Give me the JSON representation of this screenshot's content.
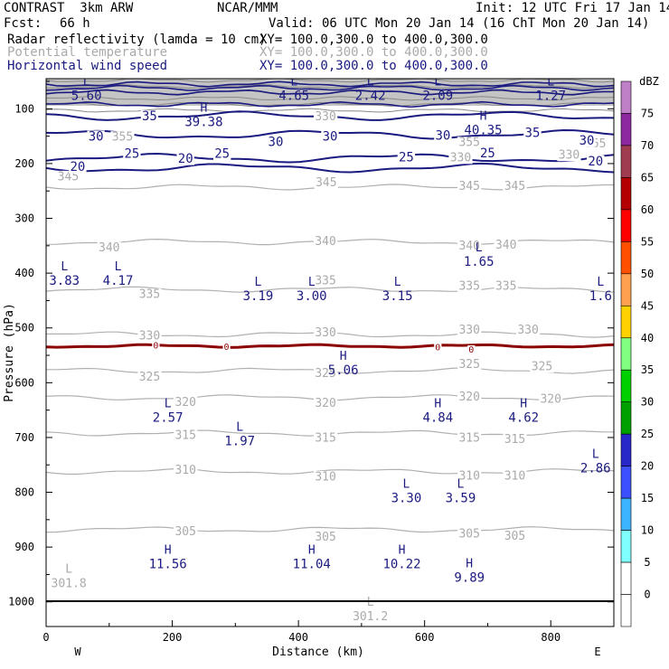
{
  "header": {
    "model": "CONTRAST  3km ARW",
    "center": "NCAR/MMM",
    "init": "Init: 12 UTC Fri 17 Jan 14",
    "fcst_label": "Fcst:",
    "fcst_value": "66 h",
    "valid": "Valid: 06 UTC Mon 20 Jan 14 (16 ChT Mon 20 Jan 14)",
    "fields": [
      {
        "name": "Radar reflectivity (lamda = 10 cm)",
        "xy": "XY= 100.0,300.0 to 400.0,300.0",
        "color": "#000000"
      },
      {
        "name": "Potential temperature",
        "xy": "XY= 100.0,300.0 to 400.0,300.0",
        "color": "#aaaaaa"
      },
      {
        "name": "Horizontal wind speed",
        "xy": "XY= 100.0,300.0 to 400.0,300.0",
        "color": "#1a1a80"
      }
    ]
  },
  "chart_data": {
    "type": "cross-section",
    "xlabel": "Distance (km)",
    "ylabel": "Pressure (hPa)",
    "xlim": [
      0,
      900
    ],
    "ylim": [
      1045,
      45
    ],
    "x_ticks": [
      0,
      200,
      400,
      600,
      800
    ],
    "y_ticks": [
      100,
      200,
      300,
      400,
      500,
      600,
      700,
      800,
      900,
      1000
    ],
    "x_end_labels": {
      "left": "W",
      "right": "E"
    },
    "theta_contours": [
      {
        "label": "345",
        "p": 243
      },
      {
        "label": "340",
        "p": 343
      },
      {
        "label": "335",
        "p": 430
      },
      {
        "label": "330",
        "p": 512
      },
      {
        "label": "325",
        "p": 578
      },
      {
        "label": "320",
        "p": 627
      },
      {
        "label": "315",
        "p": 692
      },
      {
        "label": "310",
        "p": 762
      },
      {
        "label": "305",
        "p": 868
      }
    ],
    "theta_labels": [
      {
        "text": "345",
        "x": 35,
        "p": 222
      },
      {
        "text": "345",
        "x": 444,
        "p": 233
      },
      {
        "text": "345",
        "x": 671,
        "p": 240
      },
      {
        "text": "345",
        "x": 743,
        "p": 240
      },
      {
        "text": "340",
        "x": 100,
        "p": 352
      },
      {
        "text": "340",
        "x": 443,
        "p": 340
      },
      {
        "text": "340",
        "x": 671,
        "p": 349
      },
      {
        "text": "340",
        "x": 729,
        "p": 347
      },
      {
        "text": "335",
        "x": 164,
        "p": 437
      },
      {
        "text": "335",
        "x": 443,
        "p": 412
      },
      {
        "text": "335",
        "x": 671,
        "p": 422
      },
      {
        "text": "335",
        "x": 729,
        "p": 422
      },
      {
        "text": "330",
        "x": 164,
        "p": 513
      },
      {
        "text": "330",
        "x": 443,
        "p": 507
      },
      {
        "text": "330",
        "x": 671,
        "p": 502
      },
      {
        "text": "330",
        "x": 764,
        "p": 502
      },
      {
        "text": "325",
        "x": 164,
        "p": 588
      },
      {
        "text": "325",
        "x": 443,
        "p": 581
      },
      {
        "text": "325",
        "x": 671,
        "p": 565
      },
      {
        "text": "325",
        "x": 786,
        "p": 569
      },
      {
        "text": "320",
        "x": 221,
        "p": 634
      },
      {
        "text": "320",
        "x": 443,
        "p": 636
      },
      {
        "text": "320",
        "x": 671,
        "p": 624
      },
      {
        "text": "320",
        "x": 800,
        "p": 628
      },
      {
        "text": "315",
        "x": 221,
        "p": 694
      },
      {
        "text": "315",
        "x": 443,
        "p": 699
      },
      {
        "text": "315",
        "x": 671,
        "p": 699
      },
      {
        "text": "315",
        "x": 743,
        "p": 702
      },
      {
        "text": "310",
        "x": 221,
        "p": 758
      },
      {
        "text": "310",
        "x": 443,
        "p": 770
      },
      {
        "text": "310",
        "x": 671,
        "p": 769
      },
      {
        "text": "310",
        "x": 743,
        "p": 769
      },
      {
        "text": "305",
        "x": 221,
        "p": 870
      },
      {
        "text": "305",
        "x": 443,
        "p": 880
      },
      {
        "text": "305",
        "x": 671,
        "p": 874
      },
      {
        "text": "305",
        "x": 743,
        "p": 878
      },
      {
        "text": "330",
        "x": 657,
        "p": 188
      },
      {
        "text": "330",
        "x": 829,
        "p": 183
      },
      {
        "text": "330",
        "x": 443,
        "p": 113
      },
      {
        "text": "355",
        "x": 121,
        "p": 150
      },
      {
        "text": "355",
        "x": 671,
        "p": 160
      },
      {
        "text": "355",
        "x": 871,
        "p": 162
      }
    ],
    "zero_line": {
      "label": "0",
      "p": 533
    },
    "zero_labels": [
      {
        "x": 174,
        "p": 533
      },
      {
        "x": 286,
        "p": 535
      },
      {
        "x": 621,
        "p": 536
      },
      {
        "x": 674,
        "p": 540
      }
    ],
    "wind_contours": [
      {
        "label": "20",
        "p": 208
      },
      {
        "label": "25",
        "p": 190
      },
      {
        "label": "30",
        "p": 147
      },
      {
        "label": "35",
        "p": 113
      }
    ],
    "wind_labels": [
      {
        "text": "20",
        "x": 50,
        "p": 205
      },
      {
        "text": "25",
        "x": 136,
        "p": 181
      },
      {
        "text": "20",
        "x": 221,
        "p": 190
      },
      {
        "text": "25",
        "x": 279,
        "p": 181
      },
      {
        "text": "25",
        "x": 571,
        "p": 188
      },
      {
        "text": "25",
        "x": 700,
        "p": 180
      },
      {
        "text": "20",
        "x": 871,
        "p": 195
      },
      {
        "text": "30",
        "x": 79,
        "p": 150
      },
      {
        "text": "30",
        "x": 364,
        "p": 160
      },
      {
        "text": "30",
        "x": 450,
        "p": 150
      },
      {
        "text": "30",
        "x": 629,
        "p": 148
      },
      {
        "text": "30",
        "x": 857,
        "p": 157
      },
      {
        "text": "35",
        "x": 164,
        "p": 113
      },
      {
        "text": "35",
        "x": 771,
        "p": 143
      }
    ],
    "extrema_theta": [
      {
        "type": "L",
        "value": "301.8",
        "x": 36,
        "p": 947
      },
      {
        "type": "L",
        "value": "301.2",
        "x": 514,
        "p": 1007
      }
    ],
    "extrema_wind": [
      {
        "type": "L",
        "value": "5.60",
        "x": 64,
        "p": 57
      },
      {
        "type": "L",
        "value": "4.65",
        "x": 393,
        "p": 57
      },
      {
        "type": "L",
        "value": "2.42",
        "x": 514,
        "p": 57
      },
      {
        "type": "L",
        "value": "2.09",
        "x": 621,
        "p": 57
      },
      {
        "type": "L",
        "value": "1.27",
        "x": 800,
        "p": 57
      },
      {
        "type": "H",
        "value": "39.38",
        "x": 250,
        "p": 105
      },
      {
        "type": "H",
        "value": "40.35",
        "x": 693,
        "p": 120
      },
      {
        "type": "L",
        "value": "3.83",
        "x": 29,
        "p": 395
      },
      {
        "type": "L",
        "value": "4.17",
        "x": 114,
        "p": 395
      },
      {
        "type": "L",
        "value": "1.65",
        "x": 686,
        "p": 360
      },
      {
        "type": "L",
        "value": "3.19",
        "x": 336,
        "p": 423
      },
      {
        "type": "L",
        "value": "3.00",
        "x": 421,
        "p": 423
      },
      {
        "type": "L",
        "value": "3.15",
        "x": 557,
        "p": 423
      },
      {
        "type": "L",
        "value": "1.6",
        "x": 879,
        "p": 423
      },
      {
        "type": "H",
        "value": "5.06",
        "x": 471,
        "p": 558
      },
      {
        "type": "L",
        "value": "2.57",
        "x": 193,
        "p": 645
      },
      {
        "type": "H",
        "value": "4.84",
        "x": 621,
        "p": 645
      },
      {
        "type": "H",
        "value": "4.62",
        "x": 757,
        "p": 645
      },
      {
        "type": "L",
        "value": "1.97",
        "x": 307,
        "p": 688
      },
      {
        "type": "L",
        "value": "2.86",
        "x": 871,
        "p": 737
      },
      {
        "type": "L",
        "value": "3.30",
        "x": 571,
        "p": 792
      },
      {
        "type": "L",
        "value": "3.59",
        "x": 657,
        "p": 792
      },
      {
        "type": "H",
        "value": "11.56",
        "x": 193,
        "p": 912
      },
      {
        "type": "H",
        "value": "11.04",
        "x": 421,
        "p": 912
      },
      {
        "type": "H",
        "value": "10.22",
        "x": 564,
        "p": 912
      },
      {
        "type": "H",
        "value": "9.89",
        "x": 671,
        "p": 937
      }
    ],
    "colorbar": {
      "unit": "dBZ",
      "levels": [
        {
          "label": "0",
          "color": "#ffffff"
        },
        {
          "label": "5",
          "color": "#80ffff"
        },
        {
          "label": "10",
          "color": "#3cb4ff"
        },
        {
          "label": "15",
          "color": "#3c50ff"
        },
        {
          "label": "20",
          "color": "#2828c8"
        },
        {
          "label": "25",
          "color": "#00a000"
        },
        {
          "label": "30",
          "color": "#00d000"
        },
        {
          "label": "35",
          "color": "#80ff80"
        },
        {
          "label": "40",
          "color": "#ffd200"
        },
        {
          "label": "45",
          "color": "#ffa050"
        },
        {
          "label": "50",
          "color": "#ff5000"
        },
        {
          "label": "55",
          "color": "#ff0000"
        },
        {
          "label": "60",
          "color": "#b40000"
        },
        {
          "label": "65",
          "color": "#a03c50"
        },
        {
          "label": "70",
          "color": "#8c28a0"
        },
        {
          "label": "75",
          "color": "#c080c8"
        }
      ]
    }
  }
}
